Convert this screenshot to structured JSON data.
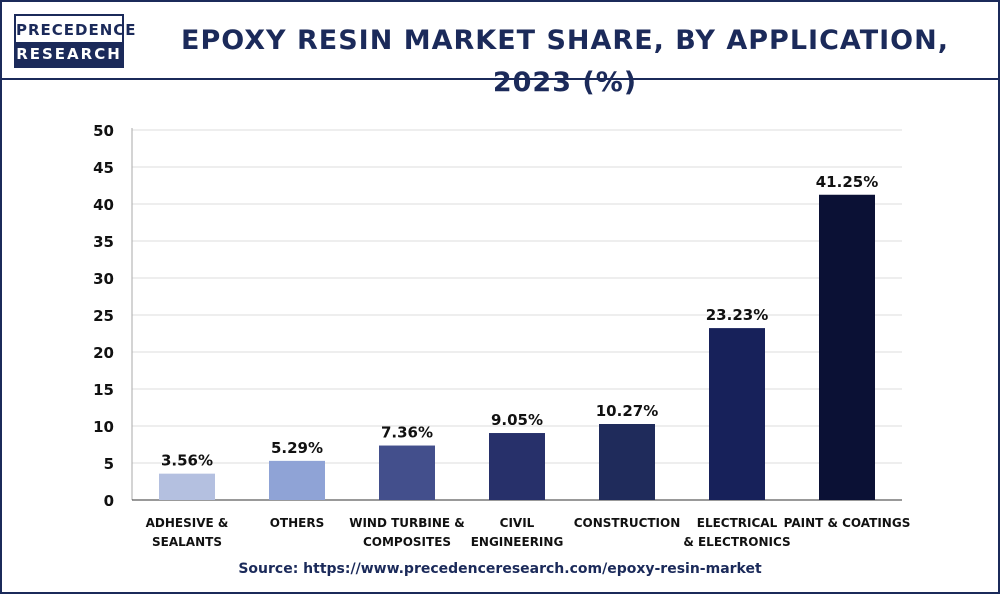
{
  "header": {
    "logo_line1": "PRECEDENCE",
    "logo_line2": "RESEARCH",
    "title": "EPOXY RESIN MARKET SHARE, BY APPLICATION, 2023 (%)"
  },
  "source": "Source: https://www.precedenceresearch.com/epoxy-resin-market",
  "chart_data": {
    "type": "bar",
    "title": "EPOXY RESIN MARKET SHARE, BY APPLICATION, 2023 (%)",
    "xlabel": "",
    "ylabel": "",
    "ylim": [
      0,
      50
    ],
    "yticks": [
      "0",
      "5",
      "10",
      "15",
      "20",
      "25",
      "30",
      "35",
      "40",
      "45",
      "50"
    ],
    "grid": true,
    "categories": [
      [
        "ADHESIVE &",
        "SEALANTS"
      ],
      [
        "OTHERS"
      ],
      [
        "WIND TURBINE &",
        "COMPOSITES"
      ],
      [
        "CIVIL",
        "ENGINEERING"
      ],
      [
        "CONSTRUCTION"
      ],
      [
        "ELECTRICAL",
        "& ELECTRONICS"
      ],
      [
        "PAINT & COATINGS"
      ]
    ],
    "values": [
      3.56,
      5.29,
      7.36,
      9.05,
      10.27,
      23.23,
      41.25
    ],
    "data_labels": [
      "3.56%",
      "5.29%",
      "7.36%",
      "9.05%",
      "10.27%",
      "23.23%",
      "41.25%"
    ],
    "colors": [
      "#b4c0e0",
      "#8fa3d6",
      "#434f8c",
      "#27306a",
      "#1f2b5b",
      "#17215a",
      "#0b1135"
    ]
  }
}
